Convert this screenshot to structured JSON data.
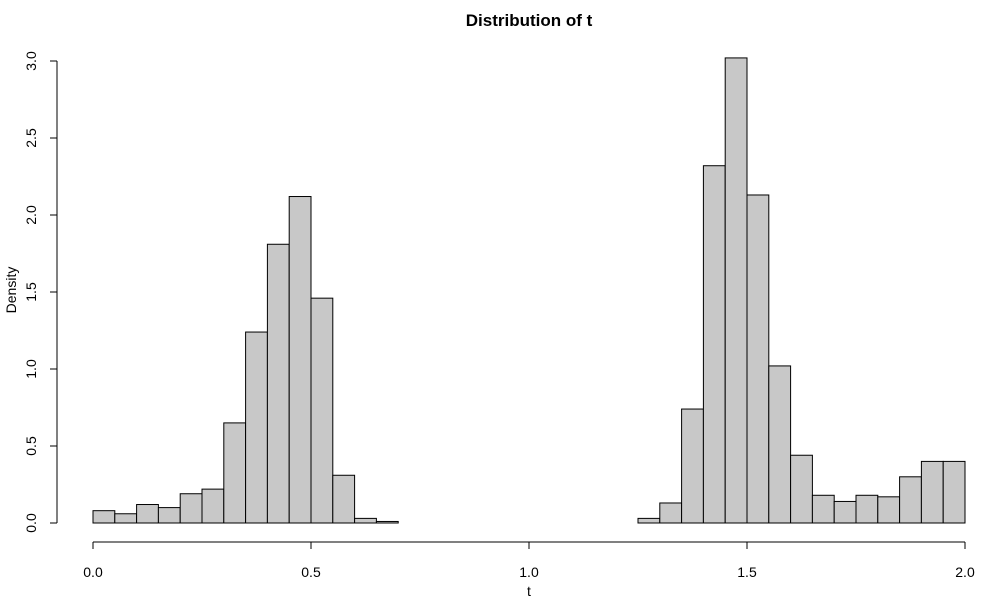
{
  "chart_data": {
    "type": "bar",
    "title": "Distribution of t",
    "xlabel": "t",
    "ylabel": "Density",
    "xlim": [
      0,
      2
    ],
    "ylim": [
      0,
      3
    ],
    "bin_width": 0.05,
    "bin_starts": [
      0.0,
      0.05,
      0.1,
      0.15,
      0.2,
      0.25,
      0.3,
      0.35,
      0.4,
      0.45,
      0.5,
      0.55,
      0.6,
      0.65,
      0.7,
      0.75,
      0.8,
      0.85,
      0.9,
      0.95,
      1.0,
      1.05,
      1.1,
      1.15,
      1.2,
      1.25,
      1.3,
      1.35,
      1.4,
      1.45,
      1.5,
      1.55,
      1.6,
      1.65,
      1.7,
      1.75,
      1.8,
      1.85,
      1.9,
      1.95
    ],
    "values": [
      0.08,
      0.06,
      0.12,
      0.1,
      0.19,
      0.22,
      0.65,
      1.24,
      1.81,
      2.12,
      1.46,
      0.31,
      0.03,
      0.01,
      0,
      0,
      0,
      0,
      0,
      0,
      0,
      0,
      0,
      0,
      0,
      0.03,
      0.13,
      0.74,
      2.32,
      3.02,
      2.13,
      1.02,
      0.44,
      0.18,
      0.14,
      0.18,
      0.17,
      0.3,
      0.4,
      0.4
    ],
    "x_ticks": [
      0.0,
      0.5,
      1.0,
      1.5,
      2.0
    ],
    "x_tick_labels": [
      "0.0",
      "0.5",
      "1.0",
      "1.5",
      "2.0"
    ],
    "y_ticks": [
      0.0,
      0.5,
      1.0,
      1.5,
      2.0,
      2.5,
      3.0
    ],
    "y_tick_labels": [
      "0.0",
      "0.5",
      "1.0",
      "1.5",
      "2.0",
      "2.5",
      "3.0"
    ],
    "bar_fill": "#c8c8c8",
    "bar_stroke": "#000000",
    "grid": false,
    "legend": "none"
  }
}
